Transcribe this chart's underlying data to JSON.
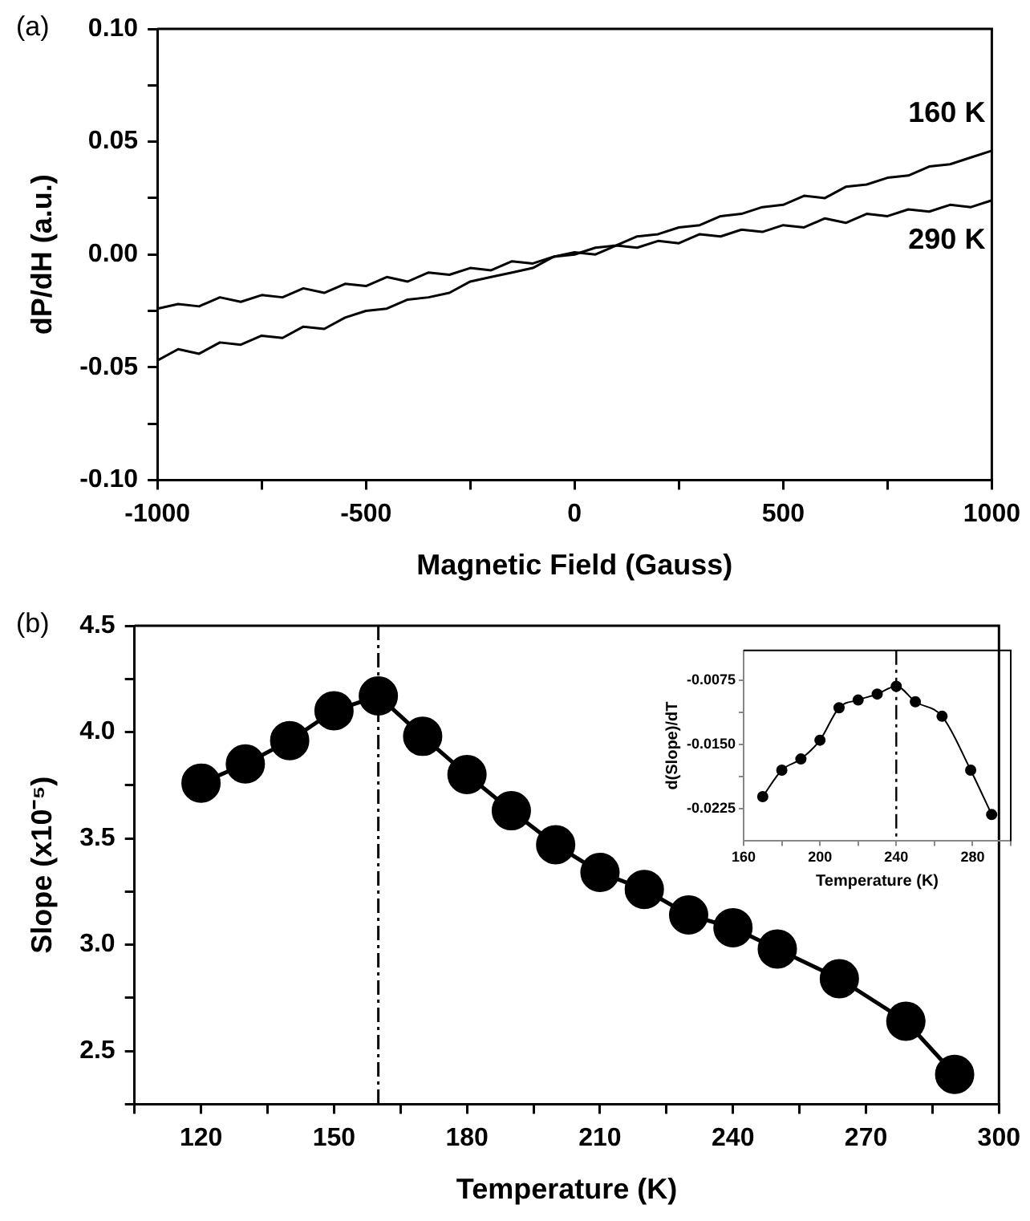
{
  "chart_data": [
    {
      "type": "line",
      "xlabel": "Magnetic Field (Gauss)",
      "ylabel": "dP/dH (a.u.)",
      "annotations": [
        "(a)"
      ],
      "marker": "none",
      "grid": false,
      "legend": false,
      "x": [
        -1000,
        -950,
        -900,
        -850,
        -800,
        -750,
        -700,
        -650,
        -600,
        -550,
        -500,
        -450,
        -400,
        -350,
        -300,
        -250,
        -200,
        -150,
        -100,
        -50,
        0,
        50,
        100,
        150,
        200,
        250,
        300,
        350,
        400,
        450,
        500,
        550,
        600,
        650,
        700,
        750,
        800,
        850,
        900,
        950,
        1000
      ],
      "series": [
        {
          "name": "160 K",
          "color": "#000000",
          "values": [
            -0.047,
            -0.042,
            -0.044,
            -0.039,
            -0.04,
            -0.036,
            -0.037,
            -0.032,
            -0.033,
            -0.028,
            -0.025,
            -0.024,
            -0.02,
            -0.019,
            -0.017,
            -0.012,
            -0.01,
            -0.008,
            -0.006,
            -0.001,
            0.0,
            0.003,
            0.004,
            0.008,
            0.009,
            0.012,
            0.013,
            0.017,
            0.018,
            0.021,
            0.022,
            0.026,
            0.025,
            0.03,
            0.031,
            0.034,
            0.035,
            0.039,
            0.04,
            0.043,
            0.046
          ]
        },
        {
          "name": "290 K",
          "color": "#000000",
          "values": [
            -0.024,
            -0.022,
            -0.023,
            -0.019,
            -0.021,
            -0.018,
            -0.019,
            -0.015,
            -0.017,
            -0.013,
            -0.014,
            -0.01,
            -0.012,
            -0.008,
            -0.009,
            -0.006,
            -0.007,
            -0.003,
            -0.004,
            -0.001,
            0.001,
            0.0,
            0.004,
            0.003,
            0.006,
            0.005,
            0.009,
            0.008,
            0.011,
            0.01,
            0.013,
            0.012,
            0.016,
            0.014,
            0.018,
            0.017,
            0.02,
            0.019,
            0.022,
            0.021,
            0.024
          ]
        }
      ],
      "xlim": [
        -1000,
        1000
      ],
      "xticks": [
        -1000,
        {
          "value": -750,
          "label": null
        },
        -500,
        {
          "value": -250,
          "label": null
        },
        0,
        {
          "value": 250,
          "label": null
        },
        500,
        {
          "value": 750,
          "label": null
        },
        1000
      ],
      "ylim": [
        -0.1,
        0.1
      ],
      "yticks": [
        {
          "value": -0.1,
          "label": "-0.10"
        },
        {
          "value": -0.075,
          "label": null
        },
        {
          "value": -0.05,
          "label": "-0.05"
        },
        {
          "value": -0.025,
          "label": null
        },
        {
          "value": 0,
          "label": "0.00"
        },
        {
          "value": 0.025,
          "label": null
        },
        {
          "value": 0.05,
          "label": "0.05"
        },
        {
          "value": 0.075,
          "label": null
        },
        {
          "value": 0.1,
          "label": "0.10"
        }
      ]
    },
    {
      "type": "line",
      "xlabel": "Temperature (K)",
      "ylabel": "Slope (x10⁻⁵)",
      "annotations": [
        "(b)"
      ],
      "marker": "circle",
      "grid": false,
      "legend": false,
      "x": [
        120,
        130,
        140,
        150,
        160,
        170,
        180,
        190,
        200,
        210,
        220,
        230,
        240,
        250,
        264,
        279,
        290
      ],
      "series": [
        {
          "color": "#000000",
          "values": [
            3.76,
            3.85,
            3.96,
            4.1,
            4.17,
            3.98,
            3.8,
            3.63,
            3.47,
            3.34,
            3.26,
            3.14,
            3.08,
            2.98,
            2.84,
            2.64,
            2.39
          ]
        }
      ],
      "xlim": [
        105,
        300
      ],
      "xticks": [
        {
          "value": 105,
          "label": null
        },
        120,
        {
          "value": 135,
          "label": null
        },
        150,
        {
          "value": 165,
          "label": null
        },
        180,
        {
          "value": 195,
          "label": null
        },
        210,
        {
          "value": 225,
          "label": null
        },
        240,
        {
          "value": 255,
          "label": null
        },
        270,
        {
          "value": 285,
          "label": null
        },
        300
      ],
      "ylim": [
        2.25,
        4.5
      ],
      "yticks": [
        {
          "value": 2.25,
          "label": null
        },
        2.5,
        {
          "value": 2.75,
          "label": null
        },
        {
          "value": 3,
          "label": "3.0"
        },
        {
          "value": 3.25,
          "label": null
        },
        3.5,
        {
          "value": 3.75,
          "label": null
        },
        {
          "value": 4,
          "label": "4.0"
        },
        {
          "value": 4.25,
          "label": null
        },
        4.5
      ],
      "ref_lines": [
        {
          "axis": "x",
          "value": 160,
          "color": "#000000",
          "line_style": "dashdot"
        }
      ]
    },
    {
      "type": "line",
      "xlabel": "Temperature (K)",
      "ylabel": "d(Slope)/dT",
      "marker": "circle",
      "grid": false,
      "legend": false,
      "x": [
        170,
        180,
        190,
        200,
        210,
        220,
        230,
        240,
        250,
        264,
        279,
        290
      ],
      "series": [
        {
          "color": "#000000",
          "values": [
            -0.0211,
            -0.018,
            -0.0167,
            -0.0145,
            -0.0107,
            -0.0098,
            -0.0091,
            -0.0082,
            -0.01,
            -0.0117,
            -0.018,
            -0.0232
          ]
        }
      ],
      "xlim": [
        160,
        300
      ],
      "xticks": [
        160,
        {
          "value": 180,
          "label": null
        },
        200,
        {
          "value": 220,
          "label": null
        },
        240,
        {
          "value": 260,
          "label": null
        },
        280,
        {
          "value": 300,
          "label": null
        }
      ],
      "ylim": [
        -0.0263,
        -0.004
      ],
      "yticks": [
        {
          "value": -0.0225,
          "label": "-0.0225"
        },
        {
          "value": -0.01875,
          "label": null
        },
        {
          "value": -0.015,
          "label": "-0.0150"
        },
        {
          "value": -0.01125,
          "label": null
        },
        {
          "value": -0.0075,
          "label": "-0.0075"
        }
      ],
      "ref_lines": [
        {
          "axis": "x",
          "value": 240,
          "color": "#000000",
          "line_style": "dashdot"
        }
      ]
    }
  ]
}
